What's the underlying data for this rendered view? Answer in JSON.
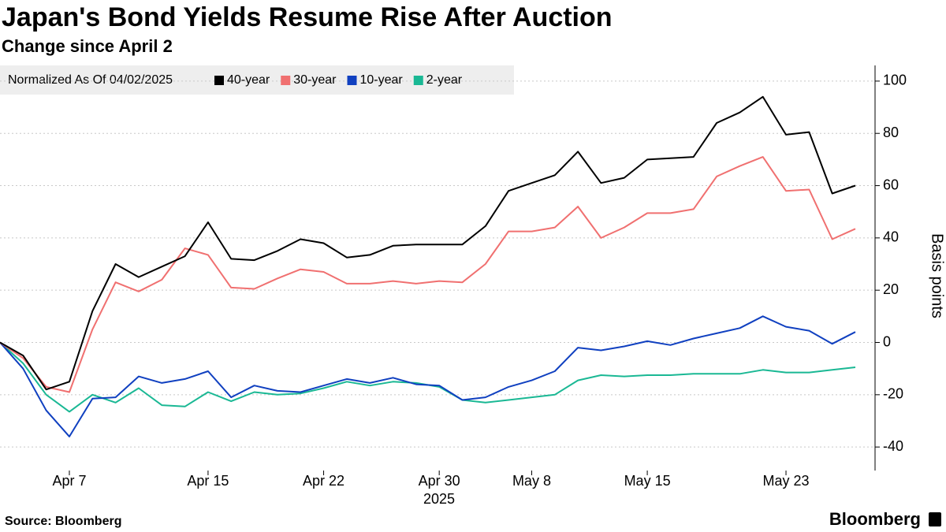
{
  "chart_data": {
    "type": "line",
    "title": "Japan's Bond Yields Resume Rise After Auction",
    "subtitle": "Change since April 2",
    "legend_title": "Normalized As Of 04/02/2025",
    "y_label": "Basis points",
    "x_year_label": "2025",
    "source": "Source: Bloomberg",
    "brand": "Bloomberg",
    "categories": [
      null,
      null,
      null,
      "Apr 7",
      null,
      null,
      null,
      null,
      null,
      "Apr 15",
      null,
      null,
      null,
      null,
      "Apr 22",
      null,
      null,
      null,
      null,
      "Apr 30",
      null,
      null,
      null,
      "May 8",
      null,
      null,
      null,
      null,
      "May 15",
      null,
      null,
      null,
      null,
      null,
      "May 23",
      null,
      null,
      null
    ],
    "series": [
      {
        "name": "40-year",
        "color": "#000000",
        "values": [
          0,
          -5,
          -18,
          -15,
          12,
          30,
          25,
          29,
          33,
          46,
          32,
          31.5,
          35,
          39.5,
          38,
          32.5,
          33.5,
          37,
          37.5,
          37.5,
          37.5,
          44.5,
          58,
          61,
          64,
          73,
          61,
          63,
          70,
          70.5,
          71,
          84,
          88,
          94,
          79.5,
          80.5,
          57,
          60
        ]
      },
      {
        "name": "30-year",
        "color": "#f07070",
        "values": [
          0,
          -6,
          -17,
          -19,
          5,
          23,
          19.5,
          24,
          36,
          33.5,
          21,
          20.5,
          24.5,
          28,
          27,
          22.5,
          22.5,
          23.5,
          22.5,
          23.5,
          23,
          30,
          42.5,
          42.5,
          44,
          52,
          40,
          44,
          49.5,
          49.5,
          51,
          63.5,
          67.5,
          71,
          58,
          58.5,
          39.5,
          43.5
        ]
      },
      {
        "name": "10-year",
        "color": "#1040c0",
        "values": [
          0,
          -10,
          -26,
          -36,
          -21.5,
          -21,
          -13,
          -15.5,
          -14,
          -11,
          -21,
          -16.5,
          -18.5,
          -19,
          -16.5,
          -14,
          -15.5,
          -13.5,
          -16,
          -16.5,
          -22,
          -21,
          -17,
          -14.5,
          -11,
          -2,
          -3,
          -1.5,
          0.5,
          -1,
          1.5,
          3.5,
          5.5,
          10,
          6,
          4.5,
          -0.5,
          4
        ]
      },
      {
        "name": "2-year",
        "color": "#1ab894",
        "values": [
          0,
          -8,
          -20,
          -26.5,
          -20,
          -23,
          -17.5,
          -24,
          -24.5,
          -19,
          -22.5,
          -19,
          -20,
          -19.5,
          -17.5,
          -15,
          -16.5,
          -15,
          -15.5,
          -17,
          -22,
          -23,
          -22,
          -21,
          -20,
          -14.5,
          -12.5,
          -13,
          -12.5,
          -12.5,
          -12,
          -12,
          -12,
          -10.5,
          -11.5,
          -11.5,
          -10.5,
          -9.5
        ]
      }
    ],
    "ylim": [
      -49,
      106
    ],
    "yticks": [
      -40,
      -20,
      0,
      20,
      40,
      60,
      80,
      100
    ],
    "grid": true
  }
}
